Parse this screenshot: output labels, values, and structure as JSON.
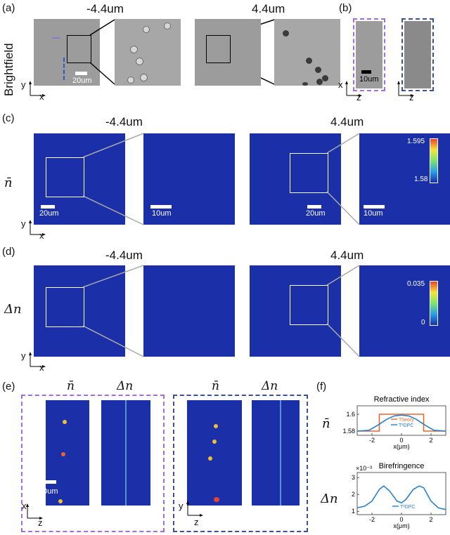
{
  "panels": {
    "a": {
      "label": "(a)",
      "row_label": "Brightfield",
      "left_title": "-4.4um",
      "right_title": "4.4um",
      "scalebar": "20um",
      "axis_y": "y",
      "axis_x": "x"
    },
    "b": {
      "label": "(b)",
      "scalebar": "10um",
      "axis_v": "x",
      "axis_h1": "z",
      "axis_h2": "z"
    },
    "c": {
      "label": "(c)",
      "row_label": "n̄",
      "left_title": "-4.4um",
      "right_title": "4.4um",
      "scalebar_left": "20um",
      "scalebar_left_zoom": "10um",
      "scalebar_right": "20um",
      "scalebar_right_zoom": "10um",
      "colorbar_max": "1.595",
      "colorbar_min": "1.58",
      "axis_y": "y",
      "axis_x": "x"
    },
    "d": {
      "label": "(d)",
      "row_label": "Δn",
      "left_title": "-4.4um",
      "right_title": "4.4um",
      "colorbar_max": "0.035",
      "colorbar_min": "0",
      "axis_y": "y",
      "axis_x": "x"
    },
    "e": {
      "label": "(e)",
      "col1": "n̄",
      "col2": "Δn",
      "col3": "n̄",
      "col4": "Δn",
      "scalebar": "10um",
      "axis_x1": "x",
      "axis_z1": "z",
      "axis_y2": "y",
      "axis_z2": "z"
    },
    "f": {
      "label": "(f)",
      "row1_label": "n̄",
      "row2_label": "Δn"
    }
  },
  "chart_data": [
    {
      "type": "line",
      "title": "Refractive index",
      "xlabel": "x(μm)",
      "ylabel": "",
      "xlim": [
        -3,
        3
      ],
      "ylim": [
        1.575,
        1.61
      ],
      "xticks": [
        "-2",
        "0",
        "2"
      ],
      "yticks": [
        "1.58",
        "1.6"
      ],
      "legend": "center",
      "series": [
        {
          "name": "Theory",
          "color": "#e8672a",
          "x": [
            -3,
            -1.5,
            -1.5,
            1.5,
            1.5,
            3
          ],
          "y": [
            1.58,
            1.58,
            1.6,
            1.6,
            1.58,
            1.58
          ]
        },
        {
          "name": "T²DPC",
          "color": "#2a7fd0",
          "x": [
            -3,
            -2.2,
            -1.6,
            -1.0,
            -0.5,
            0,
            0.5,
            1.0,
            1.6,
            2.2,
            3
          ],
          "y": [
            1.58,
            1.581,
            1.587,
            1.594,
            1.598,
            1.599,
            1.598,
            1.594,
            1.587,
            1.581,
            1.58
          ]
        }
      ]
    },
    {
      "type": "line",
      "title": "Birefringence",
      "xlabel": "x(μm)",
      "ylabel": "",
      "y_multiplier": "×10⁻³",
      "xlim": [
        -3,
        3
      ],
      "ylim": [
        0.8,
        3.3
      ],
      "xticks": [
        "-2",
        "0",
        "2"
      ],
      "yticks": [
        "1",
        "2",
        "3"
      ],
      "legend": "bottom-center",
      "series": [
        {
          "name": "T²DPC",
          "color": "#2a7fd0",
          "x": [
            -3,
            -2.5,
            -2.0,
            -1.5,
            -1.2,
            -0.8,
            -0.3,
            0,
            0.3,
            0.8,
            1.2,
            1.5,
            2.0,
            2.5,
            3
          ],
          "y": [
            1.2,
            1.3,
            1.6,
            2.3,
            2.5,
            2.2,
            1.6,
            1.5,
            1.7,
            2.3,
            2.5,
            2.4,
            1.6,
            1.2,
            1.1
          ]
        }
      ]
    }
  ]
}
